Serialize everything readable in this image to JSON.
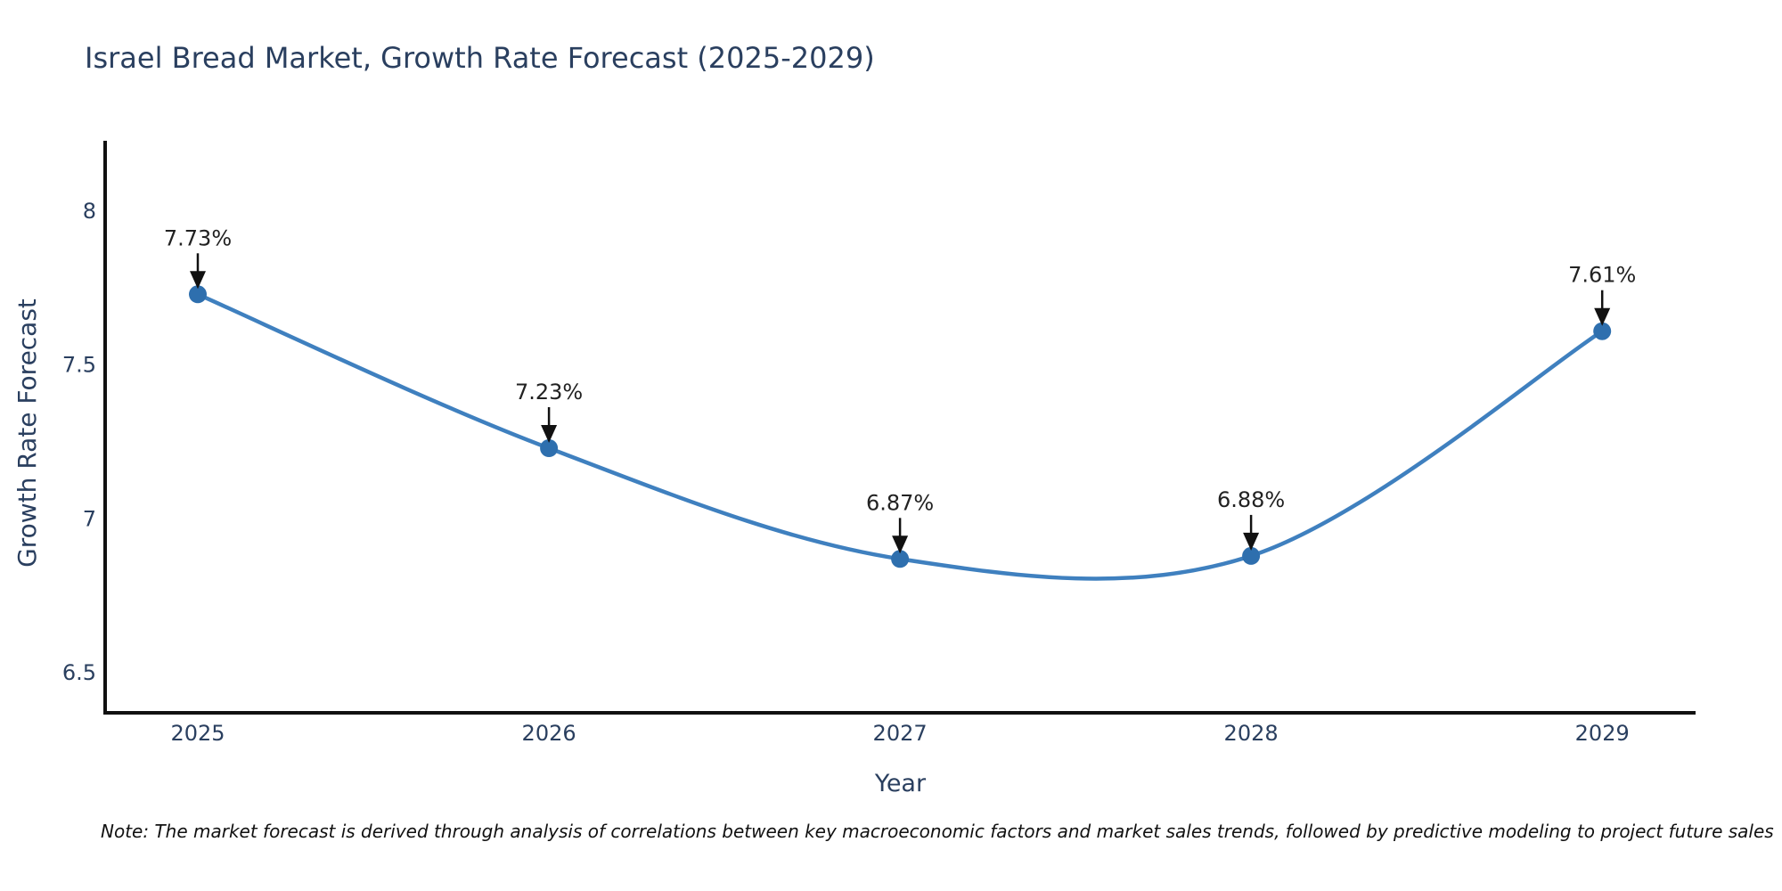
{
  "page": {
    "background": "#ffffff"
  },
  "chart_data": {
    "type": "line",
    "title": "Israel Bread Market, Growth Rate Forecast (2025-2029)",
    "xlabel": "Year",
    "ylabel": "Growth Rate Forecast",
    "x": [
      2025,
      2026,
      2027,
      2028,
      2029
    ],
    "series": [
      {
        "name": "Growth Rate Forecast",
        "values": [
          7.73,
          7.23,
          6.87,
          6.88,
          7.61
        ]
      }
    ],
    "point_labels": [
      "7.73%",
      "7.23%",
      "6.87%",
      "6.88%",
      "7.61%"
    ],
    "xticks": [
      "2025",
      "2026",
      "2027",
      "2028",
      "2029"
    ],
    "yticks": [
      {
        "value": 8,
        "label": "8"
      },
      {
        "value": 7.5,
        "label": "7.5"
      },
      {
        "value": 7,
        "label": "7"
      },
      {
        "value": 6.5,
        "label": "6.5"
      }
    ],
    "xlim": [
      2024.736,
      2029.266
    ],
    "ylim": [
      6.37,
      8.223
    ],
    "grid": false,
    "legend": "none",
    "line_shape": "spline",
    "marker": "circle",
    "annotation_arrows": true,
    "colors": {
      "line": "#3f80bf",
      "marker": "#2e6fae",
      "axis": "#111111",
      "title_text": "#2a3f5f",
      "tick_text": "#2a3f5f",
      "axis_title_text": "#2a3f5f",
      "annotation_text": "#222222",
      "arrow": "#111111",
      "note_text": "#111111",
      "background": "#ffffff"
    },
    "note": "Note: The market forecast is derived through analysis of correlations between key macroeconomic factors and market sales trends, followed by predictive modeling to project future sales"
  }
}
